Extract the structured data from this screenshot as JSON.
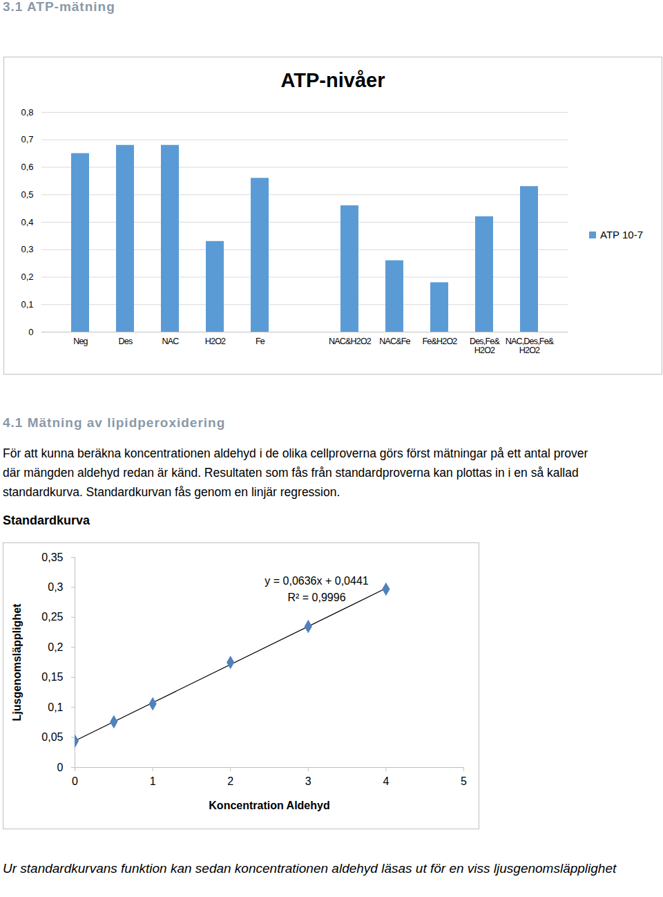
{
  "heading_1": "3.1 ATP-mätning",
  "heading_2": "4.1 Mätning av lipidperoxidering",
  "paragraph": "För att kunna beräkna koncentrationen aldehyd i de olika cellproverna görs först mätningar på ett antal prover där mängden aldehyd redan är känd. Resultaten som fås från standardproverna kan plottas in i en så kallad standardkurva. Standardkurvan fås genom en linjär regression.",
  "subheading": "Standardkurva",
  "caption": "Ur standardkurvans funktion kan sedan koncentrationen aldehyd läsas ut för en viss ljusgenomsläpplighet",
  "chart_data": [
    {
      "type": "bar",
      "title": "ATP-nivåer",
      "categories": [
        "Neg",
        "Des",
        "NAC",
        "H2O2",
        "Fe",
        null,
        "NAC&H2O2",
        "NAC&Fe",
        "Fe&H2O2",
        "Des,Fe&\nH2O2",
        "NAC,Des,Fe&\nH2O2"
      ],
      "series": [
        {
          "name": "ATP 10-7",
          "color": "#5b9bd5",
          "values": [
            0.65,
            0.68,
            0.68,
            0.33,
            0.56,
            null,
            0.46,
            0.26,
            0.18,
            0.42,
            0.53
          ]
        }
      ],
      "ylim": [
        0,
        0.8
      ],
      "yticks": [
        0,
        {
          "value": 0.1,
          "label": "0,1"
        },
        {
          "value": 0.2,
          "label": "0,2"
        },
        {
          "value": 0.3,
          "label": "0,3"
        },
        {
          "value": 0.4,
          "label": "0,4"
        },
        {
          "value": 0.5,
          "label": "0,5"
        },
        {
          "value": 0.6,
          "label": "0,6"
        },
        {
          "value": 0.7,
          "label": "0,7"
        },
        {
          "value": 0.8,
          "label": "0,8"
        }
      ],
      "grid": true,
      "legend": "right"
    },
    {
      "type": "scatter",
      "x_label": "Koncentration Aldehyd",
      "y_label": "Ljusgenomsläpplighet",
      "x": [
        0,
        0.5,
        1,
        2,
        3,
        4
      ],
      "values": [
        0.044,
        0.076,
        0.106,
        0.175,
        0.235,
        0.297
      ],
      "color": "#4f81bd",
      "marker": "diamond",
      "annotations": [
        "y = 0,0636x + 0,0441",
        "R² = 0,9996"
      ],
      "xlim": [
        0,
        5
      ],
      "xticks": [
        0,
        1,
        2,
        3,
        4,
        5
      ],
      "ylim": [
        0,
        0.35
      ],
      "yticks": [
        0,
        {
          "value": 0.05,
          "label": "0,05"
        },
        {
          "value": 0.1,
          "label": "0,1"
        },
        {
          "value": 0.15,
          "label": "0,15"
        },
        {
          "value": 0.2,
          "label": "0,2"
        },
        {
          "value": 0.25,
          "label": "0,25"
        },
        {
          "value": 0.3,
          "label": "0,3"
        },
        {
          "value": 0.35,
          "label": "0,35"
        }
      ],
      "grid": false
    }
  ]
}
